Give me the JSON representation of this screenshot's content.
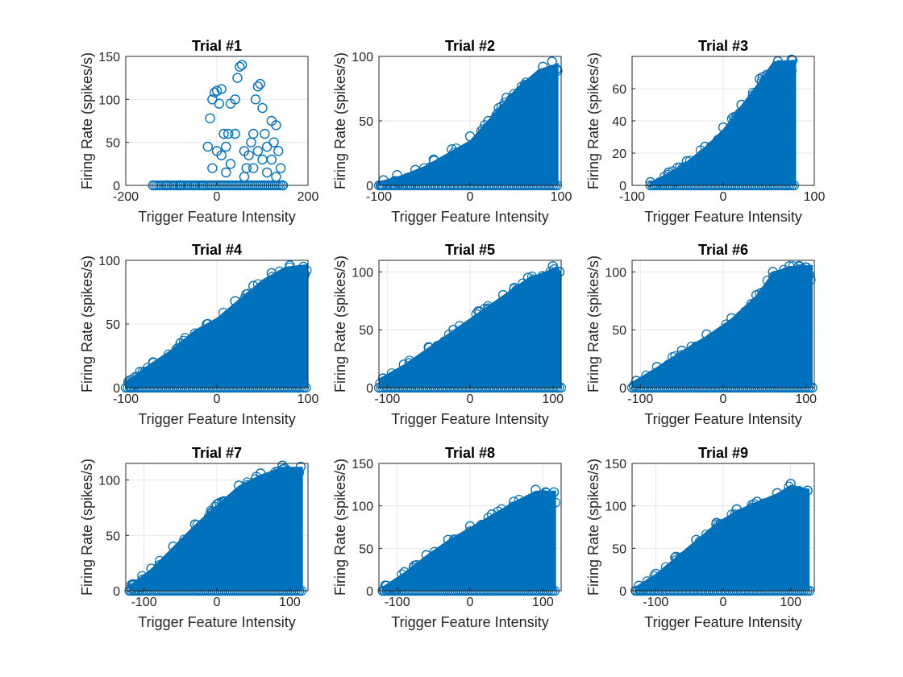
{
  "figure": {
    "marker_color": "#0072BD",
    "axes_color": "#262626",
    "grid_color": "#e6e6e6",
    "background": "#ffffff"
  },
  "chart_data": [
    {
      "type": "scatter",
      "title": "Trial #1",
      "xlabel": "Trigger Feature Intensity",
      "ylabel": "Firing Rate (spikes/s)",
      "xlim": [
        -200,
        200
      ],
      "ylim": [
        0,
        150
      ],
      "xticks": [
        -200,
        0,
        200
      ],
      "yticks": [
        0,
        50,
        100,
        150
      ],
      "xticklabels": [
        "-200",
        "0",
        "200"
      ],
      "yticklabels": [
        "0",
        "50",
        "100",
        "150"
      ],
      "grid": true,
      "legend": "none",
      "marker": "circle-open",
      "envelope": {
        "xmin": -140,
        "xmax": 145,
        "upper": [
          [
            -140,
            0
          ],
          [
            -40,
            0
          ],
          [
            -30,
            5
          ],
          [
            -25,
            60
          ],
          [
            -15,
            100
          ],
          [
            0,
            110
          ],
          [
            10,
            115
          ],
          [
            20,
            80
          ],
          [
            40,
            120
          ],
          [
            50,
            140
          ],
          [
            55,
            138
          ],
          [
            60,
            60
          ],
          [
            70,
            40
          ],
          [
            80,
            60
          ],
          [
            90,
            115
          ],
          [
            100,
            120
          ],
          [
            110,
            75
          ],
          [
            130,
            80
          ],
          [
            145,
            20
          ]
        ]
      },
      "points": [
        [
          -140,
          0
        ],
        [
          -110,
          0
        ],
        [
          -80,
          0
        ],
        [
          -50,
          0
        ],
        [
          -30,
          0
        ],
        [
          -20,
          45
        ],
        [
          -15,
          78
        ],
        [
          -10,
          100
        ],
        [
          -5,
          108
        ],
        [
          0,
          110
        ],
        [
          5,
          95
        ],
        [
          10,
          112
        ],
        [
          15,
          60
        ],
        [
          20,
          45
        ],
        [
          25,
          60
        ],
        [
          30,
          95
        ],
        [
          40,
          100
        ],
        [
          45,
          125
        ],
        [
          50,
          138
        ],
        [
          55,
          140
        ],
        [
          60,
          40
        ],
        [
          65,
          20
        ],
        [
          70,
          35
        ],
        [
          75,
          50
        ],
        [
          80,
          60
        ],
        [
          85,
          100
        ],
        [
          90,
          115
        ],
        [
          95,
          118
        ],
        [
          100,
          90
        ],
        [
          105,
          60
        ],
        [
          110,
          45
        ],
        [
          120,
          75
        ],
        [
          125,
          50
        ],
        [
          130,
          70
        ],
        [
          135,
          40
        ],
        [
          140,
          20
        ],
        [
          145,
          0
        ],
        [
          -10,
          20
        ],
        [
          0,
          40
        ],
        [
          10,
          35
        ],
        [
          20,
          15
        ],
        [
          30,
          25
        ],
        [
          40,
          60
        ],
        [
          60,
          10
        ],
        [
          80,
          20
        ],
        [
          90,
          40
        ],
        [
          100,
          30
        ],
        [
          110,
          15
        ],
        [
          120,
          30
        ],
        [
          130,
          10
        ]
      ]
    },
    {
      "type": "scatter",
      "title": "Trial #2",
      "xlabel": "Trigger Feature Intensity",
      "ylabel": "Firing Rate (spikes/s)",
      "xlim": [
        -100,
        100
      ],
      "ylim": [
        0,
        100
      ],
      "xticks": [
        -100,
        0,
        100
      ],
      "yticks": [
        0,
        50,
        100
      ],
      "xticklabels": [
        "-100",
        "0",
        "100"
      ],
      "yticklabels": [
        "0",
        "50",
        "100"
      ],
      "grid": true,
      "legend": "none",
      "marker": "circle-open",
      "envelope": {
        "xmin": -100,
        "xmax": 97,
        "upper": [
          [
            -100,
            3
          ],
          [
            -75,
            8
          ],
          [
            -50,
            15
          ],
          [
            -25,
            25
          ],
          [
            0,
            35
          ],
          [
            25,
            55
          ],
          [
            50,
            75
          ],
          [
            75,
            90
          ],
          [
            97,
            95
          ]
        ]
      },
      "points": [
        [
          -95,
          4
        ],
        [
          -80,
          8
        ],
        [
          -60,
          12
        ],
        [
          -40,
          20
        ],
        [
          -20,
          28
        ],
        [
          0,
          38
        ],
        [
          20,
          50
        ],
        [
          40,
          68
        ],
        [
          60,
          78
        ],
        [
          80,
          92
        ],
        [
          90,
          96
        ],
        [
          95,
          90
        ],
        [
          70,
          60
        ],
        [
          50,
          40
        ]
      ]
    },
    {
      "type": "scatter",
      "title": "Trial #3",
      "xlabel": "Trigger Feature Intensity",
      "ylabel": "Firing Rate (spikes/s)",
      "xlim": [
        -100,
        100
      ],
      "ylim": [
        0,
        80
      ],
      "xticks": [
        -100,
        0,
        100
      ],
      "yticks": [
        0,
        20,
        40,
        60
      ],
      "xticklabels": [
        "-100",
        "0",
        "100"
      ],
      "yticklabels": [
        "0",
        "20",
        "40",
        "60"
      ],
      "grid": true,
      "legend": "none",
      "marker": "circle-open",
      "envelope": {
        "xmin": -80,
        "xmax": 80,
        "upper": [
          [
            -80,
            2
          ],
          [
            -60,
            8
          ],
          [
            -40,
            15
          ],
          [
            -20,
            24
          ],
          [
            0,
            35
          ],
          [
            20,
            50
          ],
          [
            40,
            65
          ],
          [
            55,
            77
          ],
          [
            80,
            78
          ]
        ]
      },
      "points": [
        [
          -80,
          2
        ],
        [
          -60,
          8
        ],
        [
          -40,
          15
        ],
        [
          -20,
          24
        ],
        [
          0,
          36
        ],
        [
          20,
          50
        ],
        [
          40,
          66
        ],
        [
          60,
          77
        ],
        [
          75,
          78
        ]
      ]
    },
    {
      "type": "scatter",
      "title": "Trial #4",
      "xlabel": "Trigger Feature Intensity",
      "ylabel": "Firing Rate (spikes/s)",
      "xlim": [
        -100,
        100
      ],
      "ylim": [
        0,
        100
      ],
      "xticks": [
        -100,
        0,
        100
      ],
      "yticks": [
        0,
        50,
        100
      ],
      "xticklabels": [
        "-100",
        "0",
        "100"
      ],
      "yticklabels": [
        "0",
        "50",
        "100"
      ],
      "grid": true,
      "legend": "none",
      "marker": "circle-open",
      "envelope": {
        "xmin": -100,
        "xmax": 100,
        "upper": [
          [
            -100,
            5
          ],
          [
            -75,
            18
          ],
          [
            -50,
            30
          ],
          [
            -25,
            45
          ],
          [
            0,
            55
          ],
          [
            25,
            70
          ],
          [
            50,
            85
          ],
          [
            75,
            95
          ],
          [
            100,
            97
          ]
        ]
      },
      "points": [
        [
          -95,
          6
        ],
        [
          -70,
          20
        ],
        [
          -40,
          35
        ],
        [
          -10,
          50
        ],
        [
          20,
          68
        ],
        [
          40,
          80
        ],
        [
          60,
          90
        ],
        [
          80,
          96
        ],
        [
          95,
          95
        ]
      ]
    },
    {
      "type": "scatter",
      "title": "Trial #5",
      "xlabel": "Trigger Feature Intensity",
      "ylabel": "Firing Rate (spikes/s)",
      "xlim": [
        -110,
        110
      ],
      "ylim": [
        0,
        110
      ],
      "xticks": [
        -100,
        0,
        100
      ],
      "yticks": [
        0,
        50,
        100
      ],
      "xticklabels": [
        "-100",
        "0",
        "100"
      ],
      "yticklabels": [
        "0",
        "50",
        "100"
      ],
      "grid": true,
      "legend": "none",
      "marker": "circle-open",
      "envelope": {
        "xmin": -110,
        "xmax": 110,
        "upper": [
          [
            -110,
            8
          ],
          [
            -80,
            20
          ],
          [
            -50,
            35
          ],
          [
            -20,
            50
          ],
          [
            10,
            65
          ],
          [
            40,
            80
          ],
          [
            70,
            95
          ],
          [
            90,
            100
          ],
          [
            105,
            105
          ],
          [
            110,
            100
          ]
        ]
      },
      "points": [
        [
          -105,
          8
        ],
        [
          -80,
          20
        ],
        [
          -50,
          35
        ],
        [
          -20,
          50
        ],
        [
          10,
          66
        ],
        [
          40,
          80
        ],
        [
          70,
          95
        ],
        [
          100,
          105
        ],
        [
          108,
          100
        ]
      ]
    },
    {
      "type": "scatter",
      "title": "Trial #6",
      "xlabel": "Trigger Feature Intensity",
      "ylabel": "Firing Rate (spikes/s)",
      "xlim": [
        -110,
        110
      ],
      "ylim": [
        0,
        110
      ],
      "xticks": [
        -100,
        0,
        100
      ],
      "yticks": [
        0,
        50,
        100
      ],
      "xticklabels": [
        "-100",
        "0",
        "100"
      ],
      "yticklabels": [
        "0",
        "50",
        "100"
      ],
      "grid": true,
      "legend": "none",
      "marker": "circle-open",
      "envelope": {
        "xmin": -110,
        "xmax": 108,
        "upper": [
          [
            -110,
            5
          ],
          [
            -80,
            18
          ],
          [
            -50,
            32
          ],
          [
            -20,
            45
          ],
          [
            10,
            60
          ],
          [
            40,
            80
          ],
          [
            60,
            100
          ],
          [
            80,
            105
          ],
          [
            108,
            106
          ]
        ]
      },
      "points": [
        [
          -105,
          6
        ],
        [
          -80,
          18
        ],
        [
          -50,
          32
        ],
        [
          -20,
          46
        ],
        [
          10,
          60
        ],
        [
          40,
          80
        ],
        [
          60,
          100
        ],
        [
          80,
          105
        ],
        [
          100,
          104
        ],
        [
          95,
          30
        ],
        [
          85,
          40
        ]
      ]
    },
    {
      "type": "scatter",
      "title": "Trial #7",
      "xlabel": "Trigger Feature Intensity",
      "ylabel": "Firing Rate (spikes/s)",
      "xlim": [
        -125,
        125
      ],
      "ylim": [
        0,
        115
      ],
      "xticks": [
        -100,
        0,
        100
      ],
      "yticks": [
        0,
        50,
        100
      ],
      "xticklabels": [
        "-100",
        "0",
        "100"
      ],
      "yticklabels": [
        "0",
        "50",
        "100"
      ],
      "grid": true,
      "legend": "none",
      "marker": "circle-open",
      "envelope": {
        "xmin": -120,
        "xmax": 118,
        "upper": [
          [
            -120,
            5
          ],
          [
            -90,
            20
          ],
          [
            -60,
            40
          ],
          [
            -30,
            60
          ],
          [
            0,
            78
          ],
          [
            30,
            95
          ],
          [
            60,
            105
          ],
          [
            90,
            112
          ],
          [
            118,
            112
          ]
        ]
      },
      "points": [
        [
          -115,
          6
        ],
        [
          -90,
          20
        ],
        [
          -60,
          40
        ],
        [
          -30,
          60
        ],
        [
          0,
          78
        ],
        [
          30,
          95
        ],
        [
          60,
          106
        ],
        [
          90,
          113
        ],
        [
          115,
          112
        ]
      ]
    },
    {
      "type": "scatter",
      "title": "Trial #8",
      "xlabel": "Trigger Feature Intensity",
      "ylabel": "Firing Rate (spikes/s)",
      "xlim": [
        -125,
        125
      ],
      "ylim": [
        0,
        150
      ],
      "xticks": [
        -100,
        0,
        100
      ],
      "yticks": [
        0,
        50,
        100,
        150
      ],
      "xticklabels": [
        "-100",
        "0",
        "100"
      ],
      "yticklabels": [
        "0",
        "50",
        "100",
        "150"
      ],
      "grid": true,
      "legend": "none",
      "marker": "circle-open",
      "envelope": {
        "xmin": -120,
        "xmax": 118,
        "upper": [
          [
            -120,
            5
          ],
          [
            -90,
            22
          ],
          [
            -60,
            42
          ],
          [
            -30,
            60
          ],
          [
            0,
            75
          ],
          [
            30,
            90
          ],
          [
            60,
            105
          ],
          [
            90,
            118
          ],
          [
            118,
            118
          ]
        ]
      },
      "points": [
        [
          -115,
          6
        ],
        [
          -90,
          22
        ],
        [
          -60,
          42
        ],
        [
          -30,
          60
        ],
        [
          0,
          76
        ],
        [
          30,
          90
        ],
        [
          60,
          105
        ],
        [
          90,
          119
        ],
        [
          115,
          116
        ]
      ]
    },
    {
      "type": "scatter",
      "title": "Trial #9",
      "xlabel": "Trigger Feature Intensity",
      "ylabel": "Firing Rate (spikes/s)",
      "xlim": [
        -135,
        135
      ],
      "ylim": [
        0,
        150
      ],
      "xticks": [
        -100,
        0,
        100
      ],
      "yticks": [
        0,
        50,
        100,
        150
      ],
      "xticklabels": [
        "-100",
        "0",
        "100"
      ],
      "yticklabels": [
        "0",
        "50",
        "100",
        "150"
      ],
      "grid": true,
      "legend": "none",
      "marker": "circle-open",
      "envelope": {
        "xmin": -130,
        "xmax": 128,
        "upper": [
          [
            -130,
            5
          ],
          [
            -100,
            20
          ],
          [
            -70,
            40
          ],
          [
            -40,
            60
          ],
          [
            -10,
            80
          ],
          [
            20,
            95
          ],
          [
            50,
            105
          ],
          [
            80,
            115
          ],
          [
            100,
            125
          ],
          [
            128,
            120
          ]
        ]
      },
      "points": [
        [
          -125,
          6
        ],
        [
          -100,
          20
        ],
        [
          -70,
          40
        ],
        [
          -40,
          60
        ],
        [
          -10,
          80
        ],
        [
          20,
          96
        ],
        [
          50,
          105
        ],
        [
          80,
          115
        ],
        [
          100,
          126
        ],
        [
          125,
          118
        ]
      ]
    }
  ]
}
